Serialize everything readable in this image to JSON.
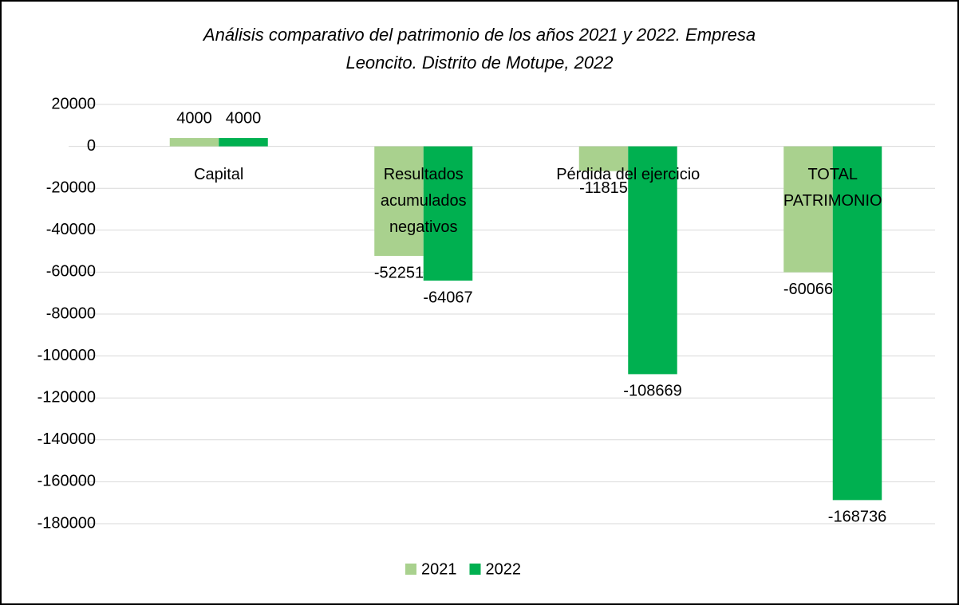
{
  "chart_data": {
    "type": "bar",
    "title": [
      "Análisis comparativo del patrimonio de los años 2021 y 2022. Empresa",
      "Leoncito. Distrito de Motupe, 2022"
    ],
    "categories": [
      "Capital",
      "Resultados acumulados negativos",
      "Pérdida del ejercicio",
      "TOTAL PATRIMONIO"
    ],
    "series": [
      {
        "name": "2021",
        "color": "#a9d18e",
        "values": [
          4000,
          -52251,
          -11815,
          -60066
        ]
      },
      {
        "name": "2022",
        "color": "#00b050",
        "values": [
          4000,
          -64067,
          -108669,
          -168736
        ]
      }
    ],
    "ylim": [
      -180000,
      20000
    ],
    "yticks": [
      20000,
      0,
      -20000,
      -40000,
      -60000,
      -80000,
      -100000,
      -120000,
      -140000,
      -160000,
      -180000
    ],
    "grid": true,
    "legend": "bottom"
  }
}
